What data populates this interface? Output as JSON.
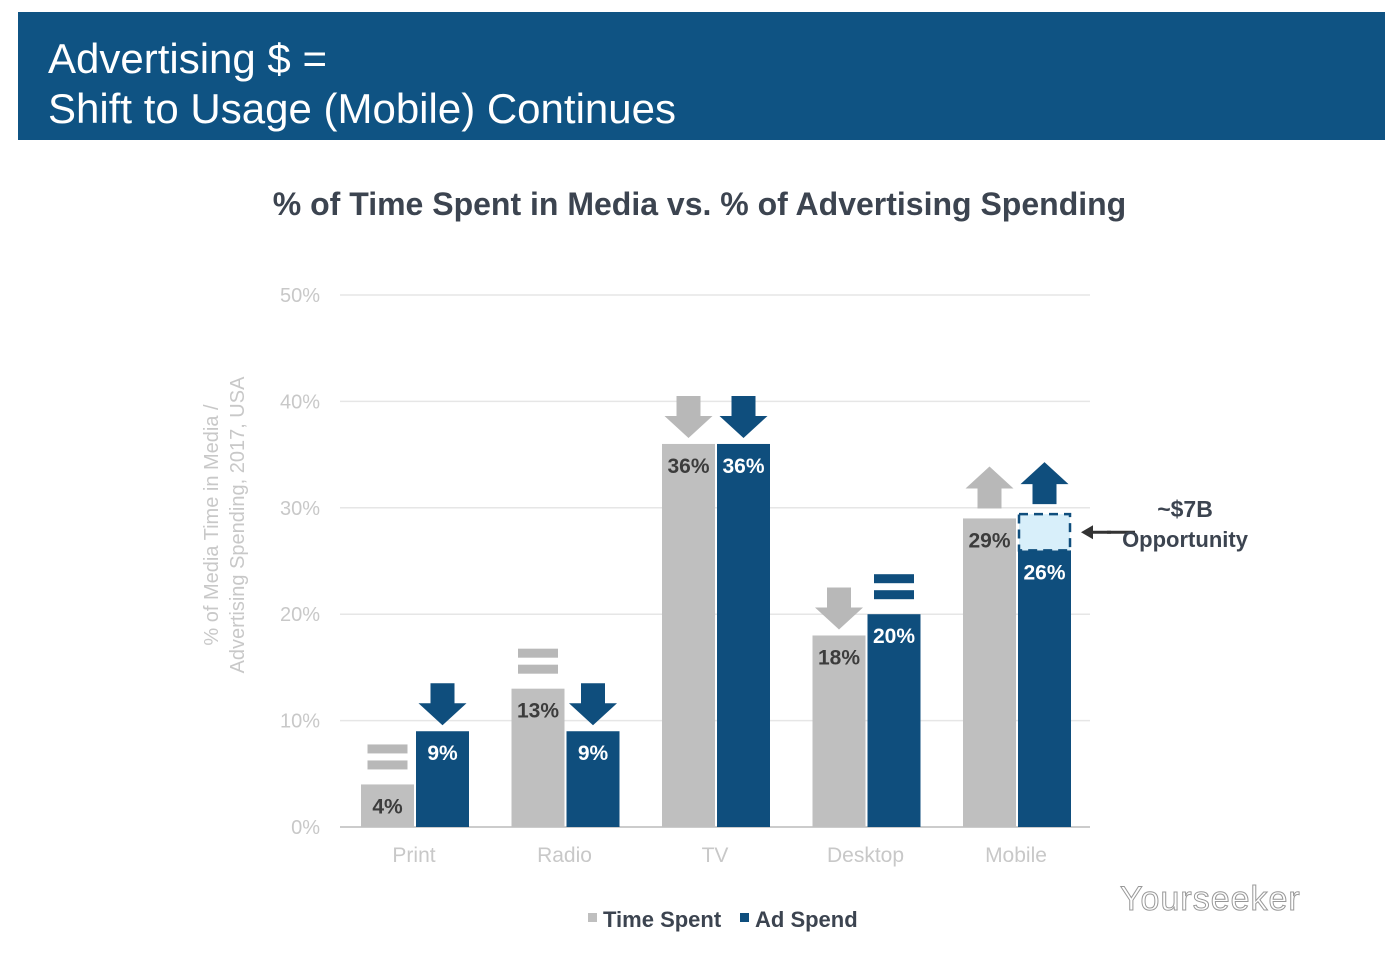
{
  "header": {
    "title_line1": "Advertising $ =",
    "title_line2": "Shift to Usage (Mobile) Continues"
  },
  "watermark": "Yourseeker",
  "colors": {
    "header": "#0f5383",
    "time_spent": "#bfbfbf",
    "ad_spend": "#0f4e7d",
    "opportunity": "#d8effa"
  },
  "chart_data": {
    "type": "bar",
    "title": "% of Time Spent in Media vs. % of Advertising Spending",
    "ylabel": "% of Media Time in Media / Advertising Spending, 2017, USA",
    "ylabel_lines": [
      "% of Media Time in Media /",
      "Advertising Spending, 2017, USA"
    ],
    "ylim": [
      0,
      50
    ],
    "yticks": [
      "0%",
      "10%",
      "20%",
      "30%",
      "40%",
      "50%"
    ],
    "grid": true,
    "legend": "bottom",
    "categories": [
      "Print",
      "Radio",
      "TV",
      "Desktop",
      "Mobile"
    ],
    "series": [
      {
        "name": "Time Spent",
        "values": [
          4,
          13,
          36,
          18,
          29
        ],
        "labels": [
          "4%",
          "13%",
          "36%",
          "18%",
          "29%"
        ],
        "trend": [
          "equal",
          "equal",
          "down",
          "down",
          "up"
        ]
      },
      {
        "name": "Ad Spend",
        "values": [
          9,
          9,
          36,
          20,
          26
        ],
        "labels": [
          "9%",
          "9%",
          "36%",
          "20%",
          "26%"
        ],
        "trend": [
          "down",
          "down",
          "down",
          "equal",
          "up"
        ]
      }
    ],
    "annotation": {
      "line1": "~$7B",
      "line2": "Opportunity",
      "category": "Mobile",
      "range": [
        26,
        29
      ]
    }
  }
}
